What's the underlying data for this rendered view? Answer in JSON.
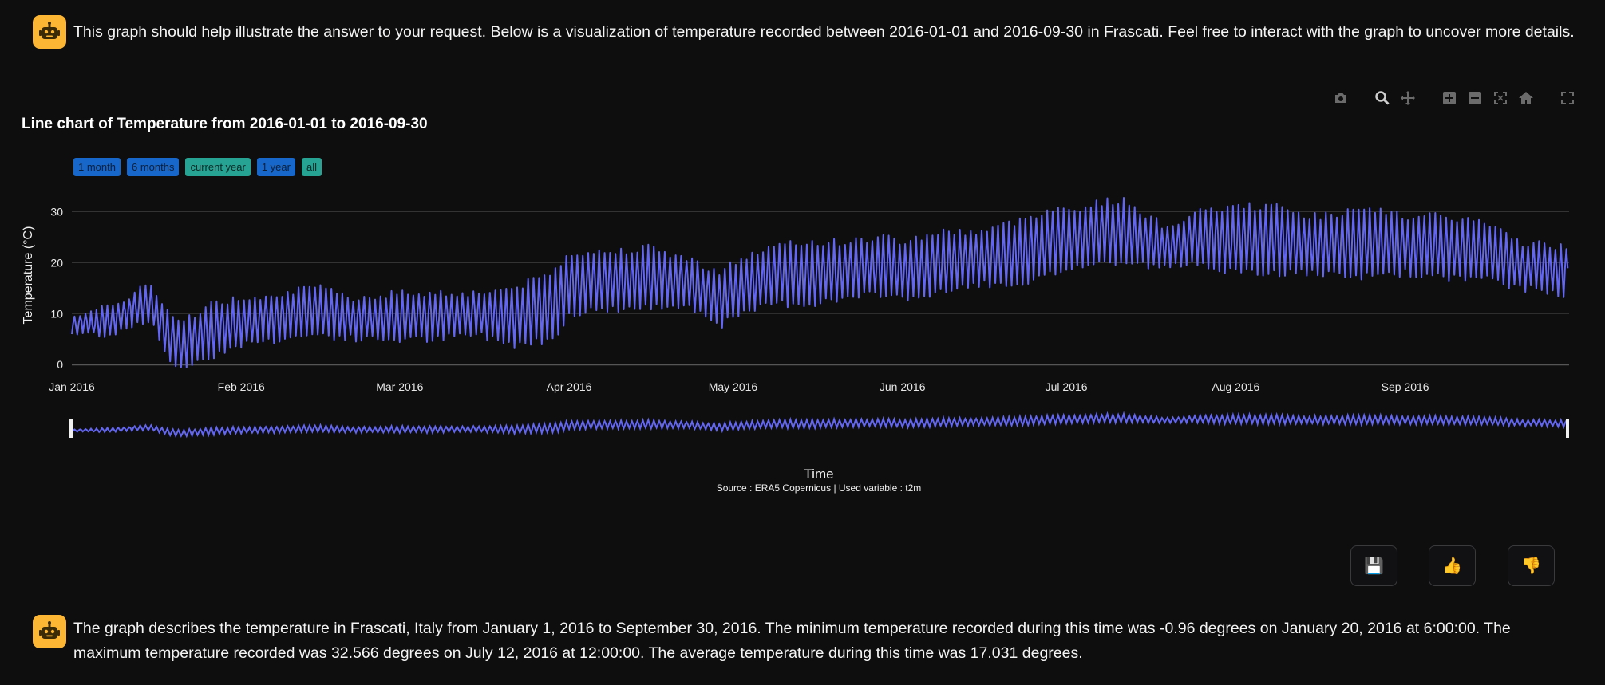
{
  "messages": {
    "intro": "This graph should help illustrate the answer to your request. Below is a visualization of temperature recorded between 2016-01-01 and 2016-09-30 in Frascati. Feel free to interact with the graph to uncover more details.",
    "summary": "The graph describes the temperature in Frascati, Italy from January 1, 2016 to September 30, 2016. The minimum temperature recorded during this time was -0.96 degrees on January 20, 2016 at 6:00:00. The maximum temperature recorded was 32.566 degrees on July 12, 2016 at 12:00:00. The average temperature during this time was 17.031 degrees."
  },
  "range_selector": [
    "1 month",
    "6 months",
    "current year",
    "1 year",
    "all"
  ],
  "modebar_icons": [
    "camera-icon",
    "zoom-icon",
    "pan-icon",
    "zoom-in-icon",
    "zoom-out-icon",
    "autoscale-icon",
    "reset-axes-icon",
    "fullscreen-icon"
  ],
  "feedback_buttons": {
    "save": "💾",
    "thumbs_up": "👍",
    "thumbs_down": "👎"
  },
  "colors": {
    "line": "#6366f1",
    "avatar": "#fdb534",
    "background": "#0e0e0f"
  },
  "chart_data": {
    "type": "line",
    "title": "Line chart of Temperature from 2016-01-01 to 2016-09-30",
    "xlabel": "Time",
    "ylabel": "Temperature (°C)",
    "source": "Source : ERA5 Copernicus | Used variable : t2m",
    "x_ticks": [
      "Jan 2016",
      "Feb 2016",
      "Mar 2016",
      "Apr 2016",
      "May 2016",
      "Jun 2016",
      "Jul 2016",
      "Aug 2016",
      "Sep 2016"
    ],
    "y_ticks": [
      "0",
      "10",
      "20",
      "30"
    ],
    "xlim": [
      "2016-01-01",
      "2016-09-30"
    ],
    "ylim": [
      -2,
      34
    ],
    "grid": true,
    "rangeslider": true,
    "series": [
      {
        "name": "",
        "x": [
          "2016-01-01",
          "2016-01-08",
          "2016-01-15",
          "2016-01-20",
          "2016-01-27",
          "2016-02-01",
          "2016-02-08",
          "2016-02-15",
          "2016-02-22",
          "2016-03-01",
          "2016-03-08",
          "2016-03-15",
          "2016-03-22",
          "2016-03-29",
          "2016-04-01",
          "2016-04-08",
          "2016-04-15",
          "2016-04-22",
          "2016-04-29",
          "2016-05-01",
          "2016-05-08",
          "2016-05-15",
          "2016-05-22",
          "2016-05-29",
          "2016-06-01",
          "2016-06-08",
          "2016-06-15",
          "2016-06-22",
          "2016-06-29",
          "2016-07-01",
          "2016-07-08",
          "2016-07-12",
          "2016-07-19",
          "2016-07-26",
          "2016-08-01",
          "2016-08-08",
          "2016-08-15",
          "2016-08-22",
          "2016-08-29",
          "2016-09-01",
          "2016-09-08",
          "2016-09-15",
          "2016-09-22",
          "2016-09-30"
        ],
        "low": [
          6,
          6,
          9,
          -1,
          2,
          4,
          5,
          6,
          5,
          5,
          5,
          6,
          4,
          5,
          10,
          11,
          11,
          12,
          8,
          9,
          12,
          12,
          13,
          14,
          13,
          14,
          16,
          15,
          18,
          19,
          20,
          20,
          19,
          20,
          18,
          18,
          18,
          17,
          18,
          18,
          17,
          17,
          15,
          14
        ],
        "high": [
          10,
          11,
          16,
          8,
          12,
          13,
          14,
          15,
          13,
          14,
          14,
          14,
          15,
          18,
          22,
          22,
          23,
          21,
          18,
          20,
          23,
          24,
          24,
          25,
          24,
          26,
          26,
          28,
          31,
          30,
          32,
          32,
          27,
          30,
          31,
          31,
          29,
          30,
          30,
          29,
          29,
          28,
          24,
          23
        ]
      }
    ]
  }
}
